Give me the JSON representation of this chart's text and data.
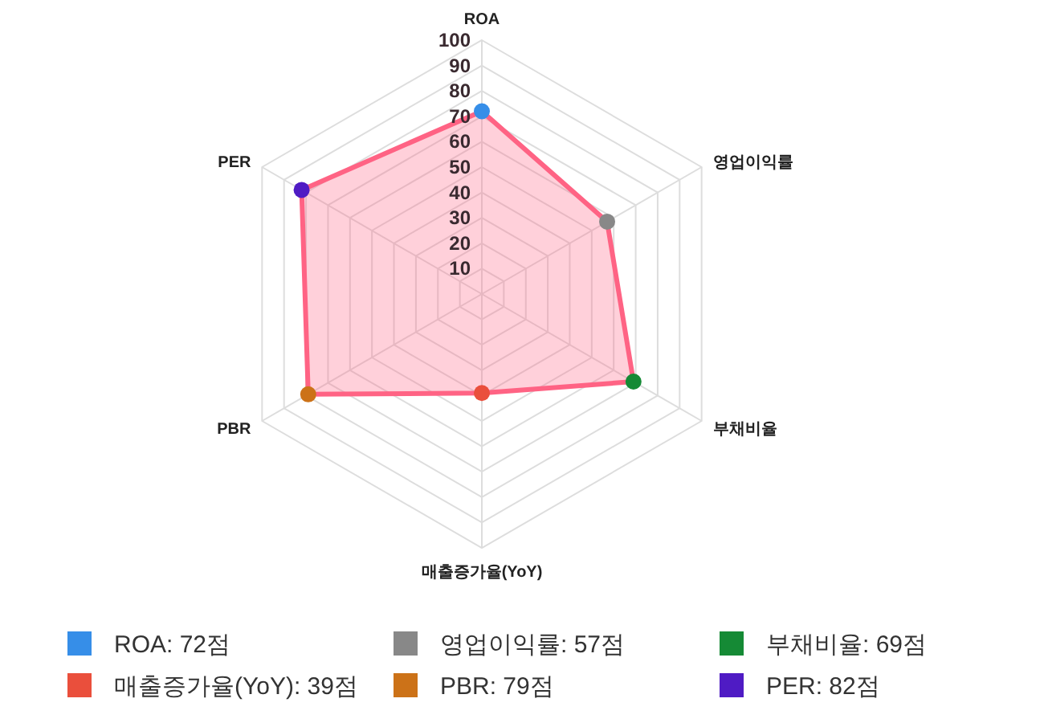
{
  "chart_data": {
    "type": "radar",
    "categories": [
      "ROA",
      "영업이익률",
      "부채비율",
      "매출증가율(YoY)",
      "PBR",
      "PER"
    ],
    "series": [
      {
        "color": "#ff6384",
        "values": [
          72,
          57,
          69,
          39,
          79,
          82
        ],
        "colors": [
          "#368ee8",
          "#888888",
          "#158a35",
          "#ea4f3c",
          "#cc7218",
          "#4f1bc4"
        ]
      }
    ],
    "annotations": [
      "ROA: 72점",
      "영업이익률: 57점",
      "부채비율: 69점",
      "매출증가율(YoY): 39점",
      "PBR: 79점",
      "PER: 82점"
    ],
    "ylim": [
      0,
      100
    ],
    "yticks": [
      10,
      20,
      30,
      40,
      50,
      60,
      70,
      80,
      90,
      100
    ],
    "marker": "circle",
    "grid": true
  }
}
